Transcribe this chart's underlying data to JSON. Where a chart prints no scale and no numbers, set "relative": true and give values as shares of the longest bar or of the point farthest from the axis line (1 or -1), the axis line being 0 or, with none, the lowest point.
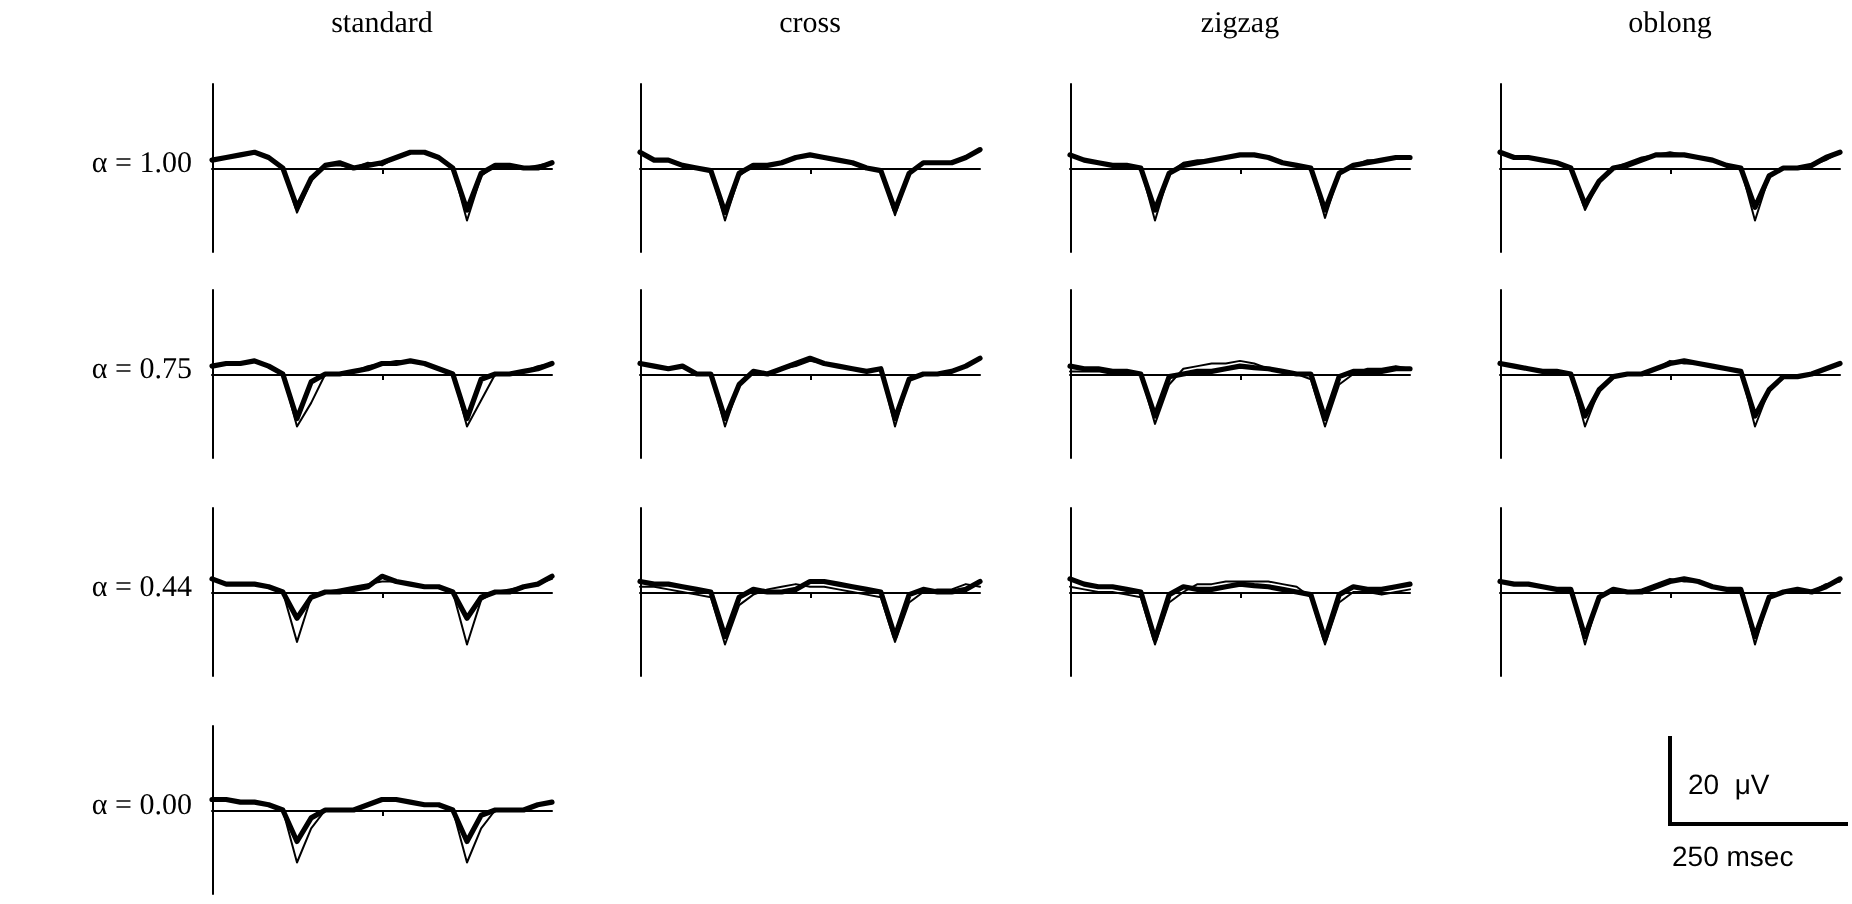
{
  "chart_data": [
    {
      "type": "line",
      "relative": true,
      "title": "standard",
      "ylabel": "α = 1.00",
      "categories": [
        null,
        null,
        null,
        null,
        null,
        null,
        null,
        null,
        null,
        null,
        null,
        null,
        null,
        null,
        null,
        null,
        null,
        null,
        null,
        null,
        null,
        null,
        null,
        null,
        null
      ],
      "series": [
        {
          "color": "#000000",
          "values": [
            0.15,
            0.2,
            0.25,
            0.3,
            0.2,
            0,
            -0.75,
            -0.2,
            0.05,
            0.1,
            0,
            0.05,
            0.1,
            0.2,
            0.3,
            0.3,
            0.2,
            0,
            -0.8,
            -0.1,
            0.05,
            0.05,
            0,
            0,
            0.1
          ]
        },
        {
          "color": "#000000",
          "values": [
            0.15,
            0.2,
            0.25,
            0.3,
            0.2,
            0,
            -0.85,
            -0.25,
            0.05,
            0.05,
            0,
            0.1,
            0.05,
            0.2,
            0.3,
            0.3,
            0.2,
            0,
            -1,
            -0.15,
            0.05,
            0.05,
            0,
            0.05,
            0.1
          ]
        }
      ]
    },
    {
      "type": "line",
      "relative": true,
      "title": "cross",
      "categories": [
        null,
        null,
        null,
        null,
        null,
        null,
        null,
        null,
        null,
        null,
        null,
        null,
        null,
        null,
        null,
        null,
        null,
        null,
        null,
        null,
        null,
        null,
        null,
        null,
        null
      ],
      "series": [
        {
          "color": "#000000",
          "values": [
            0.3,
            0.15,
            0.15,
            0.05,
            0,
            -0.05,
            -0.85,
            -0.1,
            0.05,
            0.05,
            0.1,
            0.2,
            0.25,
            0.2,
            0.15,
            0.1,
            0,
            -0.05,
            -0.8,
            -0.1,
            0.1,
            0.1,
            0.1,
            0.2,
            0.35
          ]
        },
        {
          "color": "#000000",
          "values": [
            0.3,
            0.15,
            0.15,
            0.05,
            0,
            -0.05,
            -1,
            -0.15,
            0.05,
            0.05,
            0.1,
            0.2,
            0.25,
            0.2,
            0.15,
            0.1,
            0,
            -0.05,
            -0.9,
            -0.1,
            0.1,
            0.1,
            0.1,
            0.2,
            0.35
          ]
        }
      ]
    },
    {
      "type": "line",
      "relative": true,
      "title": "zigzag",
      "categories": [
        null,
        null,
        null,
        null,
        null,
        null,
        null,
        null,
        null,
        null,
        null,
        null,
        null,
        null,
        null,
        null,
        null,
        null,
        null,
        null,
        null,
        null,
        null,
        null,
        null
      ],
      "series": [
        {
          "color": "#000000",
          "values": [
            0.25,
            0.15,
            0.1,
            0.05,
            0.05,
            0,
            -0.8,
            -0.1,
            0.05,
            0.1,
            0.15,
            0.2,
            0.25,
            0.25,
            0.2,
            0.1,
            0.05,
            0,
            -0.8,
            -0.1,
            0.05,
            0.1,
            0.15,
            0.2,
            0.2
          ]
        },
        {
          "color": "#000000",
          "values": [
            0.25,
            0.15,
            0.1,
            0.05,
            0.05,
            0,
            -1,
            -0.1,
            0.1,
            0.15,
            0.15,
            0.2,
            0.25,
            0.25,
            0.2,
            0.1,
            0.05,
            0,
            -0.95,
            -0.1,
            0.05,
            0.15,
            0.15,
            0.2,
            0.2
          ]
        }
      ]
    },
    {
      "type": "line",
      "relative": true,
      "title": "oblong",
      "categories": [
        null,
        null,
        null,
        null,
        null,
        null,
        null,
        null,
        null,
        null,
        null,
        null,
        null,
        null,
        null,
        null,
        null,
        null,
        null,
        null,
        null,
        null,
        null,
        null,
        null
      ],
      "series": [
        {
          "color": "#000000",
          "values": [
            0.3,
            0.2,
            0.2,
            0.15,
            0.1,
            0,
            -0.7,
            -0.25,
            0,
            0.05,
            0.15,
            0.25,
            0.25,
            0.25,
            0.2,
            0.15,
            0.05,
            0,
            -0.75,
            -0.15,
            0,
            0,
            0.05,
            0.2,
            0.3
          ]
        },
        {
          "color": "#000000",
          "values": [
            0.3,
            0.2,
            0.2,
            0.15,
            0.1,
            0,
            -0.8,
            -0.25,
            0,
            0.1,
            0.2,
            0.25,
            0.3,
            0.25,
            0.2,
            0.15,
            0.05,
            0,
            -1,
            -0.15,
            0,
            0,
            0.05,
            0.15,
            0.3
          ]
        }
      ]
    },
    {
      "type": "line",
      "relative": true,
      "ylabel": "α = 0.75",
      "categories": [
        null,
        null,
        null,
        null,
        null,
        null,
        null,
        null,
        null,
        null,
        null,
        null,
        null,
        null,
        null,
        null,
        null,
        null,
        null,
        null,
        null,
        null,
        null,
        null,
        null
      ],
      "series": [
        {
          "color": "#000000",
          "values": [
            0.15,
            0.2,
            0.2,
            0.25,
            0.15,
            0,
            -0.85,
            -0.15,
            0,
            0,
            0.05,
            0.1,
            0.2,
            0.2,
            0.25,
            0.2,
            0.1,
            0,
            -0.85,
            -0.1,
            0,
            0,
            0.05,
            0.1,
            0.2
          ]
        },
        {
          "color": "#000000",
          "values": [
            0.15,
            0.2,
            0.2,
            0.25,
            0.15,
            0,
            -1,
            -0.55,
            0,
            0,
            0.05,
            0.15,
            0.2,
            0.25,
            0.25,
            0.2,
            0.1,
            0,
            -1,
            -0.5,
            0,
            0,
            0.05,
            0.15,
            0.2
          ]
        }
      ]
    },
    {
      "type": "line",
      "relative": true,
      "categories": [
        null,
        null,
        null,
        null,
        null,
        null,
        null,
        null,
        null,
        null,
        null,
        null,
        null,
        null,
        null,
        null,
        null,
        null,
        null,
        null,
        null,
        null,
        null,
        null,
        null
      ],
      "series": [
        {
          "color": "#000000",
          "values": [
            0.2,
            0.15,
            0.1,
            0.15,
            0,
            0,
            -0.85,
            -0.2,
            0.05,
            0,
            0.1,
            0.2,
            0.3,
            0.2,
            0.15,
            0.1,
            0.05,
            0.1,
            -0.85,
            -0.1,
            0,
            0,
            0.05,
            0.15,
            0.3
          ]
        },
        {
          "color": "#000000",
          "values": [
            0.2,
            0.15,
            0.1,
            0.15,
            0,
            0,
            -1,
            -0.2,
            0.05,
            0,
            0.1,
            0.15,
            0.25,
            0.2,
            0.15,
            0.1,
            0.05,
            0.1,
            -1,
            -0.1,
            0,
            0,
            0.05,
            0.15,
            0.3
          ]
        }
      ]
    },
    {
      "type": "line",
      "relative": true,
      "categories": [
        null,
        null,
        null,
        null,
        null,
        null,
        null,
        null,
        null,
        null,
        null,
        null,
        null,
        null,
        null,
        null,
        null,
        null,
        null,
        null,
        null,
        null,
        null,
        null,
        null
      ],
      "series": [
        {
          "color": "#000000",
          "values": [
            0.15,
            0.1,
            0.1,
            0.05,
            0.05,
            0,
            -0.8,
            -0.05,
            0,
            0.05,
            0.05,
            0.1,
            0.15,
            0.12,
            0.1,
            0.05,
            0,
            0,
            -0.85,
            -0.05,
            0.05,
            0.05,
            0.05,
            0.1,
            0.1
          ]
        },
        {
          "color": "#000000",
          "values": [
            0.05,
            0.05,
            0.05,
            0,
            0.05,
            0,
            -0.95,
            -0.2,
            0.1,
            0.15,
            0.2,
            0.2,
            0.25,
            0.2,
            0.1,
            0.05,
            0,
            -0.1,
            -1,
            -0.2,
            0,
            0.1,
            0.1,
            0.15,
            0.1
          ]
        }
      ]
    },
    {
      "type": "line",
      "relative": true,
      "categories": [
        null,
        null,
        null,
        null,
        null,
        null,
        null,
        null,
        null,
        null,
        null,
        null,
        null,
        null,
        null,
        null,
        null,
        null,
        null,
        null,
        null,
        null,
        null,
        null,
        null
      ],
      "series": [
        {
          "color": "#000000",
          "values": [
            0.2,
            0.15,
            0.1,
            0.05,
            0.05,
            0,
            -0.8,
            -0.3,
            -0.05,
            0,
            0,
            0.1,
            0.2,
            0.25,
            0.2,
            0.15,
            0.1,
            0.05,
            -0.8,
            -0.3,
            -0.05,
            -0.05,
            0,
            0.1,
            0.2
          ]
        },
        {
          "color": "#000000",
          "values": [
            0.2,
            0.15,
            0.1,
            0.05,
            0.05,
            0,
            -1,
            -0.3,
            -0.05,
            0,
            0,
            0.1,
            0.25,
            0.2,
            0.2,
            0.15,
            0.1,
            0.05,
            -1,
            -0.3,
            -0.05,
            -0.05,
            0,
            0.1,
            0.2
          ]
        }
      ]
    },
    {
      "type": "line",
      "relative": true,
      "ylabel": "α = 0.44",
      "categories": [
        null,
        null,
        null,
        null,
        null,
        null,
        null,
        null,
        null,
        null,
        null,
        null,
        null,
        null,
        null,
        null,
        null,
        null,
        null,
        null,
        null,
        null,
        null,
        null,
        null
      ],
      "series": [
        {
          "color": "#000000",
          "values": [
            0.25,
            0.15,
            0.15,
            0.15,
            0.1,
            0,
            -0.5,
            -0.1,
            0,
            0,
            0.05,
            0.1,
            0.3,
            0.2,
            0.15,
            0.1,
            0.1,
            0,
            -0.5,
            -0.1,
            0,
            0,
            0.1,
            0.15,
            0.3
          ]
        },
        {
          "color": "#000000",
          "values": [
            0.25,
            0.15,
            0.15,
            0.15,
            0.1,
            0,
            -0.95,
            -0.1,
            0,
            0.05,
            0.1,
            0.15,
            0.2,
            0.2,
            0.15,
            0.1,
            0.1,
            0,
            -1,
            -0.15,
            0,
            0.05,
            0.1,
            0.15,
            0.25
          ]
        }
      ]
    },
    {
      "type": "line",
      "relative": true,
      "categories": [
        null,
        null,
        null,
        null,
        null,
        null,
        null,
        null,
        null,
        null,
        null,
        null,
        null,
        null,
        null,
        null,
        null,
        null,
        null,
        null,
        null,
        null,
        null,
        null,
        null
      ],
      "series": [
        {
          "color": "#000000",
          "values": [
            0.2,
            0.15,
            0.15,
            0.1,
            0.05,
            0,
            -0.85,
            -0.1,
            0.05,
            0,
            0,
            0.05,
            0.2,
            0.2,
            0.15,
            0.1,
            0.05,
            0,
            -0.85,
            -0.05,
            0.05,
            0,
            0,
            0.05,
            0.2
          ]
        },
        {
          "color": "#000000",
          "values": [
            0.1,
            0.1,
            0.05,
            0,
            -0.05,
            -0.1,
            -1,
            -0.25,
            -0.05,
            0.05,
            0.1,
            0.15,
            0.1,
            0.1,
            0.05,
            0,
            -0.05,
            -0.1,
            -0.95,
            -0.2,
            0,
            0.05,
            0.05,
            0.15,
            0.1
          ]
        }
      ]
    },
    {
      "type": "line",
      "relative": true,
      "categories": [
        null,
        null,
        null,
        null,
        null,
        null,
        null,
        null,
        null,
        null,
        null,
        null,
        null,
        null,
        null,
        null,
        null,
        null,
        null,
        null,
        null,
        null,
        null,
        null,
        null
      ],
      "series": [
        {
          "color": "#000000",
          "values": [
            0.25,
            0.15,
            0.1,
            0.1,
            0.05,
            0,
            -0.9,
            -0.05,
            0.1,
            0.05,
            0.05,
            0.1,
            0.15,
            0.12,
            0.1,
            0.05,
            0,
            -0.05,
            -0.9,
            -0.05,
            0.1,
            0.05,
            0.05,
            0.1,
            0.15
          ]
        },
        {
          "color": "#000000",
          "values": [
            0.1,
            0.05,
            0,
            0,
            -0.05,
            -0.1,
            -1,
            -0.2,
            0,
            0.15,
            0.15,
            0.2,
            0.2,
            0.2,
            0.2,
            0.15,
            0.1,
            -0.1,
            -1,
            -0.2,
            0,
            0,
            -0.05,
            0,
            0.05
          ]
        }
      ]
    },
    {
      "type": "line",
      "relative": true,
      "categories": [
        null,
        null,
        null,
        null,
        null,
        null,
        null,
        null,
        null,
        null,
        null,
        null,
        null,
        null,
        null,
        null,
        null,
        null,
        null,
        null,
        null,
        null,
        null,
        null,
        null
      ],
      "series": [
        {
          "color": "#000000",
          "values": [
            0.2,
            0.15,
            0.15,
            0.1,
            0.05,
            0.05,
            -0.85,
            -0.1,
            0.05,
            0,
            0,
            0.1,
            0.2,
            0.25,
            0.2,
            0.1,
            0.05,
            0.05,
            -0.85,
            -0.1,
            0,
            0.05,
            0,
            0.1,
            0.25
          ]
        },
        {
          "color": "#000000",
          "values": [
            0.2,
            0.15,
            0.15,
            0.1,
            0.05,
            0.05,
            -1,
            -0.1,
            0.05,
            0,
            0.05,
            0.15,
            0.25,
            0.2,
            0.2,
            0.1,
            0.05,
            0.05,
            -1,
            -0.1,
            0,
            0.05,
            0,
            0.15,
            0.2
          ]
        }
      ]
    },
    {
      "type": "line",
      "relative": true,
      "ylabel": "α = 0.00",
      "annotations": [
        "20  μV",
        "250 msec"
      ],
      "categories": [
        null,
        null,
        null,
        null,
        null,
        null,
        null,
        null,
        null,
        null,
        null,
        null,
        null,
        null,
        null,
        null,
        null,
        null,
        null,
        null,
        null,
        null,
        null,
        null,
        null
      ],
      "series": [
        {
          "color": "#000000",
          "values": [
            0.2,
            0.2,
            0.15,
            0.15,
            0.1,
            0,
            -0.6,
            -0.15,
            0,
            0,
            0,
            0.1,
            0.2,
            0.2,
            0.15,
            0.1,
            0.1,
            0,
            -0.6,
            -0.1,
            0,
            0,
            0,
            0.1,
            0.15
          ]
        },
        {
          "color": "#000000",
          "values": [
            0.2,
            0.2,
            0.15,
            0.15,
            0.1,
            0,
            -1,
            -0.35,
            0,
            0,
            0,
            0.1,
            0.2,
            0.2,
            0.15,
            0.1,
            0.1,
            0,
            -1,
            -0.35,
            0,
            0,
            0,
            0.1,
            0.15
          ]
        }
      ]
    }
  ]
}
